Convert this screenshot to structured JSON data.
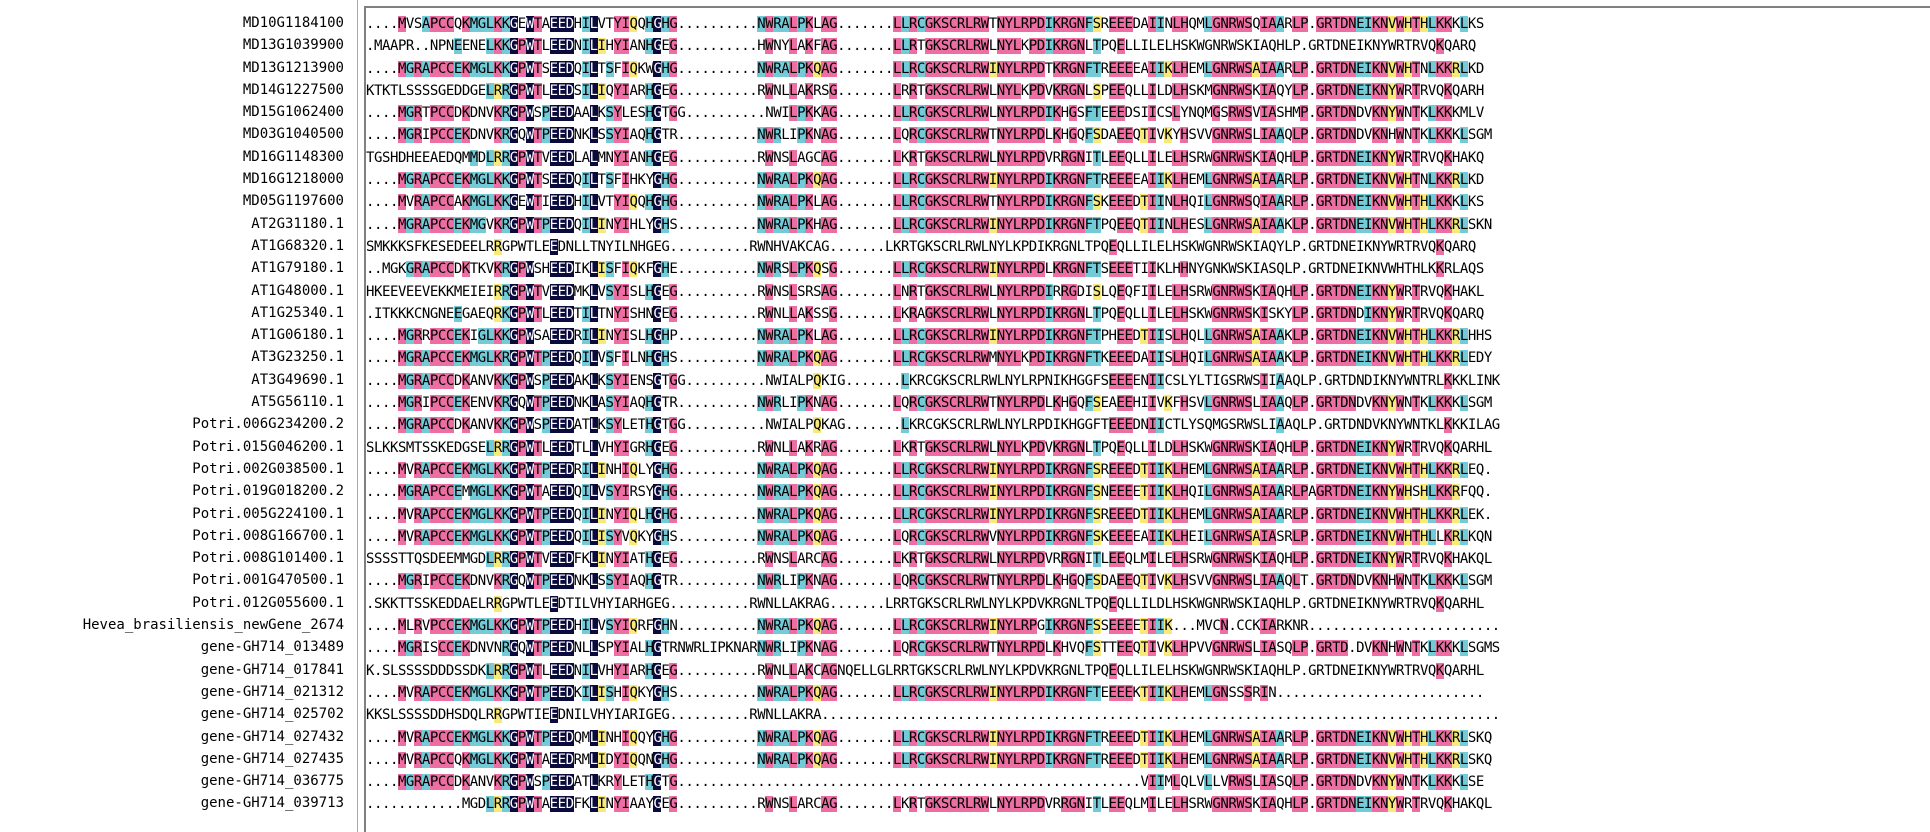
{
  "sequences": [
    {
      "name": "MD10G1184100",
      "seq": "....MVSAPCCQKMGLKKGEWTAEEDHILVTYIQQHGHG..........NWRALPKLAG.......LLRCGKSCRLRWTNYLRPDIKRGNFSREEEDAIINLHQMLGNRWSQIAARLP.GRTDNEIKNVWHTHLKKKLKS"
    },
    {
      "name": "MD13G1039900",
      "seq": ".MAAPR..NPNEENELKKGPWTLEEDNILIHYIANHGEG..........HWNYLAKFAG.......LLRTGKSCRLRWLNYLKPDIKRGNLTPQELLILELHSKWGNRWSKIAQHLP.GRTDNEIKNYWRTRVQKQARQ"
    },
    {
      "name": "MD13G1213900",
      "seq": "....MGRAPCCEKMGLKKGPWTSEEDQILTSFIQKWGHG..........NWRALPKQAG.......LLRCGKSCRLRWINYLRPDTKRGNFTREEEEAIIKLHEMLGNRWSAIAARLP.GRTDNEIKNVWHTNLKKRLKD"
    },
    {
      "name": "MD14G1227500",
      "seq": "KTKTLSSSSGEDDGELRRGPWTLEEDSILIQYIARHGEG..........RWNLLAKRSG.......LRRTGKSCRLRWLNYLKPDVKRGNLSPEEQLLILDLHSKMGNRWSKIAQYLP.GRTDNEIKNYWRTRVQKQARH"
    },
    {
      "name": "MD15G1062400",
      "seq": "....MGRTPCCDKDNVKRGPWSPEEDAALKSYLESHGTGG..........NWILPKKAG.......LLRCGKSCRLRWLNYLRPDIKHGSFTEEEDSIICSLYNQMGSRWSVIASHMP.GRTDNDVKNYWNTKLKKKMLV"
    },
    {
      "name": "MD03G1040500",
      "seq": "....MGRIPCCEKDNVKRGQWTPEEDNKLSSYIAQHGTR..........NWRLIPKNAG.......LQRCGKSCRLRWTNYLRPDLKHGQFSDAEEQTIVKYHSVVGNRWSLIAAQLP.GRTDNDVKNHWNTKLKKKLSGM"
    },
    {
      "name": "MD16G1148300",
      "seq": "TGSHDHEEAEDQMMDLRRGPWTVEEDLALMNYIANHGEG..........RWNSLAGCAG.......LKRTGKSCRLRWLNYLRPDVRRGNITLEEQLLILELHSRWGNRWSKIAQHLP.GRTDNEIKNYWRTRVQKHAKQ"
    },
    {
      "name": "MD16G1218000",
      "seq": "....MGRAPCCEKMGLKKGPWTSEEDQILTSFIHKYGHG..........NWRALPKQAG.......LLRCGKSCRLRWINYLRPDIKRGNFTREEEEAIIKLHEMLGNRWSAIAARLP.GRTDNEIKNVWHTNLKKRLKD"
    },
    {
      "name": "MD05G1197600",
      "seq": "....MVRAPCCAKMGLKKGEWTIEEDHILVTYIQQHGHG..........NWRALPKLAG.......LLRCGKSCRLRWTNYLRPDIKRGNFSKEEEDTIINLHQILGNRWSQIAARLP.GRTDNEIKNVWHTHLKKKLKS"
    },
    {
      "name": "AT2G31180.1",
      "seq": "....MGRAPCCEKMGVKRGPWTPEEDQILINYIHLYGHS..........NWRALPKHAG.......LLRCGKSCRLRWINYLRPDIKRGNFTPQEEQTIINLHESLGNRWSAIAAKLP.GRTDNEIKNVWHTHLKKRLSKN"
    },
    {
      "name": "AT1G68320.1",
      "seq": "SMKKKSFKESEDEELRRGPWTLEEDNLLTNYILNHGEG..........RWNHVAKCAG.......LKRTGKSCRLRWLNYLKPDIKRGNLTPQEQLLILELHSKWGNRWSKIAQYLP.GRTDNEIKNYWRTRVQKQARQ"
    },
    {
      "name": "AT1G79180.1",
      "seq": "..MGKGRAPCCDKTKVKRGPWSHEEDIKLISFIQKFGHE..........NWRSLPKQSG.......LLRCGKSCRLRWINYLRPDLKRGNFTSEEETIIKLHHNYGNKWSKIASQLP.GRTDNEIKNVWHTHLKKRLAQS"
    },
    {
      "name": "AT1G48000.1",
      "seq": "HKEEVEEVEKKMEIEIRRGPWTVEEDMKLVSYISLHGEG..........RWNSLSRSAG.......LNRTGKSCRLRWLNYLRPDIRRGDISLQEQFIILELHSRWGNRWSKIAQHLP.GRTDNEIKNYWRTRVQKHAKL"
    },
    {
      "name": "AT1G25340.1",
      "seq": ".ITKKKCNGNEEGAEQRKGPWTLEEDTILTNYISHNGEG..........RWNLLAKSSG.......LKRAGKSCRLRWLNYLRPDIKRGNLTPQEQLLILELHSKWGNRWSKISKYLP.GRTDNDIKNYWRTRVQKQARQ"
    },
    {
      "name": "AT1G06180.1",
      "seq": "....MGRRPCCEKIGLKKGPWSAEEDRILINYISLHGHP..........NWRALPKLAG.......LLRCGKSCRLRWINYLRPDIKRGNFTPHEEDTIISLHQLLGNRWSAIAAKLP.GRTDNEIKNVWHTHLKKRLHHS"
    },
    {
      "name": "AT3G23250.1",
      "seq": "....MGRAPCCEKMGLKRGPWTPEEDQILVSFILNHGHS..........NWRALPKQAG.......LLRCGKSCRLRWMNYLKPDIKRGNFTKEEEDAIISLHQILGNRWSAIAAKLP.GRTDNEIKNVWHTHLKKRLEDY"
    },
    {
      "name": "AT3G49690.1",
      "seq": "....MGRAPCCDKANVKKGPWSPEEDAKLKSYIENSGTGG..........NWIALPQKIG.......LKRCGKSCRLRWLNYLRPNIKHGGFSEEEENIICSLYLTIGSRWSIIAAQLP.GRTDNDIKNYWNTRLKKKLINK"
    },
    {
      "name": "AT5G56110.1",
      "seq": "....MGRIPCCEKENVKRGQWTPEEDNKLASYIAQHGTR..........NWRLIPKNAG.......LQRCGKSCRLRWTNYLRPDLKHGQFSEAEEHIIVKFHSVLGNRWSLIAAQLP.GRTDNDVKNYWNTKLKKKLSGM"
    },
    {
      "name": "Potri.006G234200.2",
      "seq": "....MGRAPCCDKANVKKGPWSPEEDATLKSYLETHGTGG..........NWIALPQKAG.......LKRCGKSCRLRWLNYLRPDIKHGGFTEEEDNIICTLYSQMGSRWSLIAAQLP.GRTDNDVKNYWNTKLKKKILAG"
    },
    {
      "name": "Potri.015G046200.1",
      "seq": "SLKKSMTSSKEDGSELRRGPWTLEEDTLLVHYIGRHGEG..........RWNLLAKRAG.......LKRTGKSCRLRWLNYLKPDVKRGNLTPQEQLLILDLHSKWGNRWSKIAQHLP.GRTDNEIKNYWRTRVQKQARHL"
    },
    {
      "name": "Potri.002G038500.1",
      "seq": "....MVRAPCCEKMGLKKGPWTPEEDRILINHIQLYGHG..........NWRALPKQAG.......LLRCGKSCRLRWINYLRPDIKRGNFSREEEDTIIKLHEMLGNRWSAIAARLP.GRTDNEIKNVWHTHLKKRLEQ."
    },
    {
      "name": "Potri.019G018200.2",
      "seq": "....MGRAPCCEMMGLKKGPWTAEEDQILVSYIRSYGHG..........NWRALPKQAG.......LLRCGKSCRLRWINYLRPDIKRGNFSNEEEETIIKLHQILGNRWSAIAARLPAGRTDNEIKNYWHSHLKKRFQQ."
    },
    {
      "name": "Potri.005G224100.1",
      "seq": "....MVRAPCCEKMGLKKGPWTPEEDQILINYIQLHGHG..........NWRALPKQAG.......LLRCGKSCRLRWINYLRPDIKRGNFSREEEDTIIKLHEMLGNRWSAIAARLP.GRTDNEIKNVWHTHLKKRLEK."
    },
    {
      "name": "Potri.008G166700.1",
      "seq": "....MVRAPCCEKMGLKKGPWTPEEDQILISYVQKYGHS..........NWRALPKQAG.......LQRCGKSCRLRWVNYLRPDIKRGNFSKEEEEAIIKLHEILGNRWSAIASRLP.GRTDNEIKNVWHTHLLKRLKQN"
    },
    {
      "name": "Potri.008G101400.1",
      "seq": "SSSSTTQSDEEMMGDLRRGPWTVEEDFKLINYIATHGEG..........RWNSLARCAG.......LKRTGKSCRLRWLNYLRPDVRRGNITLEEQLMILELHSRWGNRWSKIAQHLP.GRTDNEIKNYWRTRVQKHAKQL"
    },
    {
      "name": "Potri.001G470500.1",
      "seq": "....MGRIPCCEKDNVKRGQWTPEEDNKLSSYIAQHGTR..........NWRLIPKNAG.......LQRCGKSCRLRWTNYLRPDLKHGQFSDAEEQTIVKLHSVVGNRWSLIAAQLT.GRTDNDVKNHWNTKLKKKLSGM"
    },
    {
      "name": "Potri.012G055600.1",
      "seq": ".SKKTTSSKEDDAELRRGPWTLEEDTILVHYIARHGEG..........RWNLLAKRAG.......LRRTGKSCRLRWLNYLKPDVKRGNLTPQEQLLILDLHSKWGNRWSKIAQHLP.GRTDNEIKNYWRTRVQKQARHL"
    },
    {
      "name": "Hevea_brasiliensis_newGene_2674",
      "seq": "....MLRVPCCEKMGLKKGPWTPEEDHILVSYIQRFGHN..........NWRALPKQAG.......LLRCGKSCRLRWINYLRPGIKRGNFSSEEEETIIK...MVCN.CCKIARKNR........................"
    },
    {
      "name": "gene-GH714_013489",
      "seq": "....MGRISCCEKDNVNRGQWTPEEDNLLSPYIALHGTRNWRLIPKNARNWRLIPKNAG.......LQRCGKSCRLRWTNYLRPDLKHVQFSTTEEQTIVKLHPVVGNRWSLIASQLP.GRTD.DVKNHWNTKLKKKLSGMS"
    },
    {
      "name": "gene-GH714_017841",
      "seq": "K.SLSSSSDDDSSDKLRRGPWTLEEDNILVHYIARHGEG..........RWNLLAKCAGNQELLGLRRTGKSCRLRWLNYLKPDVKRGNLTPQEQLLILELHSKWGNRWSKIAQHLP.GRTDNEIKNYWRTRVQKQARHL"
    },
    {
      "name": "gene-GH714_021312",
      "seq": "....MVRAPCCEKMGLKKGPWTPEEDKILISHIQKYGHS..........NWRALPKQAG.......LLRCGKSCRLRWINYLRPDIKRGNFTEEEEKTIIKLHEMLGNSSSRIN.........................."
    },
    {
      "name": "gene-GH714_025702",
      "seq": "KKSLSSSSDDHSDQLRRGPWTIEEDNILVHYIARIGEG..........RWNLLAKRA....................................................................................."
    },
    {
      "name": "gene-GH714_027432",
      "seq": "....MVRAPCCEKMGLKKGPWTPEEDQMLINHIQQYGHG..........NWRALPKQAG.......LLRCGKSCRLRWINYLRPDIKRGNFTREEEDTIIKLHEMLGNRWSAIAARLP.GRTDNEIKNVWHTHLKKRLSKQ"
    },
    {
      "name": "gene-GH714_027435",
      "seq": "....MVRAPCCQKMGLKKGPWTAEEDRMLIDYIQQNGHG..........NWRALPKQAG.......LLRCGKSCRLRWINYLRPDIKRGNFTREEEDTIIKLHEMLGNRWSAIAARLP.GRTDNEIKNVWHTHLKKRLSKQ"
    },
    {
      "name": "gene-GH714_036775",
      "seq": "....MGRAPCCDKANVKRGPWSPEEDATLKRYLETHGTG..........................................................VIIMLQLVLLVRWSLIASQLP.GRTDNDVKNYWNTKLKKKLSE"
    },
    {
      "name": "gene-GH714_039713",
      "seq": "............MGDLRRGPWTAEEDFKLINYIAAYGEG..........RWNSLARCAG.......LKRTGKSCRLRWLNYLRPDVRRGNITLEEQLMILELHSRWGNRWSKIAQHLP.GRTDNEIKNYWRTRVQKHAKQL"
    }
  ],
  "colors": {
    "navy": "#0b0a3c",
    "pink": "#ec6ea2",
    "cyan": "#73cbd8",
    "yellow": "#f7ea7a"
  }
}
